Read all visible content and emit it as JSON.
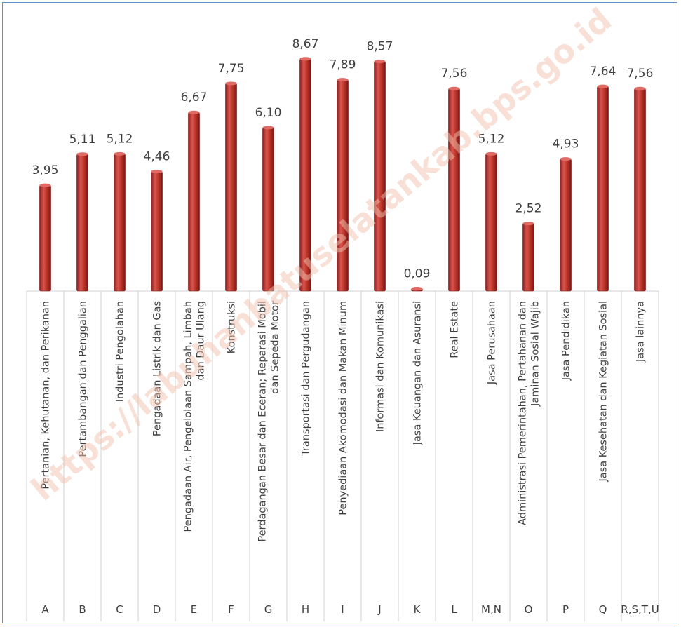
{
  "chart_data": {
    "type": "bar",
    "title": "",
    "xlabel": "",
    "ylabel": "",
    "ylim": [
      0,
      9.5
    ],
    "grid": false,
    "legend": "none",
    "bar_color": "#c0392b",
    "categories": [
      {
        "code": "A",
        "label": [
          "Pertanian, Kehutanan, dan Perikanan"
        ]
      },
      {
        "code": "B",
        "label": [
          "Pertambangan dan Penggalian"
        ]
      },
      {
        "code": "C",
        "label": [
          "Industri Pengolahan"
        ]
      },
      {
        "code": "D",
        "label": [
          "Pengadaan Listrik dan Gas"
        ]
      },
      {
        "code": "E",
        "label": [
          "Pengadaan Air, Pengelolaan Sampah, Limbah",
          "dan Daur Ulang"
        ]
      },
      {
        "code": "F",
        "label": [
          "Konstruksi"
        ]
      },
      {
        "code": "G",
        "label": [
          "Perdagangan Besar dan Eceran; Reparasi Mobil",
          "dan Sepeda Motor"
        ]
      },
      {
        "code": "H",
        "label": [
          "Transportasi dan Pergudangan"
        ]
      },
      {
        "code": "I",
        "label": [
          "Penyediaan Akomodasi dan Makan Minum"
        ]
      },
      {
        "code": "J",
        "label": [
          "Informasi dan Komunikasi"
        ]
      },
      {
        "code": "K",
        "label": [
          "Jasa Keuangan dan Asuransi"
        ]
      },
      {
        "code": "L",
        "label": [
          "Real Estate"
        ]
      },
      {
        "code": "M,N",
        "label": [
          "Jasa Perusahaan"
        ]
      },
      {
        "code": "O",
        "label": [
          "Administrasi Pemerintahan, Pertahanan dan",
          "Jaminan Sosial Wajib"
        ]
      },
      {
        "code": "P",
        "label": [
          "Jasa Pendidikan"
        ]
      },
      {
        "code": "Q",
        "label": [
          "Jasa Kesehatan dan Kegiatan Sosial"
        ]
      },
      {
        "code": "R,S,T,U",
        "label": [
          "Jasa lainnya"
        ]
      }
    ],
    "values": [
      3.95,
      5.11,
      5.12,
      4.46,
      6.67,
      7.75,
      6.1,
      8.67,
      7.89,
      8.57,
      0.09,
      7.56,
      5.12,
      2.52,
      4.93,
      7.64,
      7.56
    ],
    "value_labels": [
      "3,95",
      "5,11",
      "5,12",
      "4,46",
      "6,67",
      "7,75",
      "6,10",
      "8,67",
      "7,89",
      "8,57",
      "0,09",
      "7,56",
      "5,12",
      "2,52",
      "4,93",
      "7,64",
      "7,56"
    ]
  },
  "watermark": "https://labuhanbatuselatankab.bps.go.id"
}
